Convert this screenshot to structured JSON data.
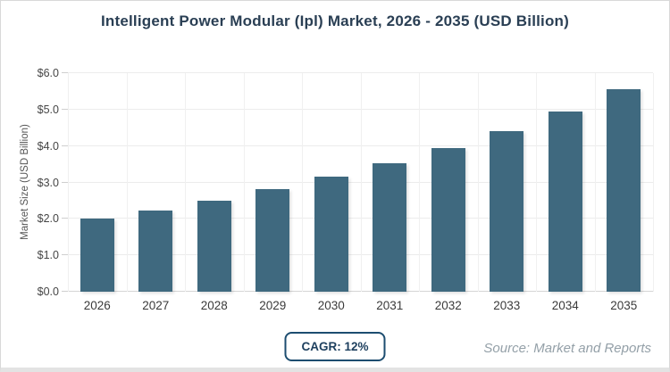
{
  "chart_data": {
    "type": "bar",
    "title": "Intelligent Power Modular (Ipl) Market, 2026 - 2035 (USD Billion)",
    "categories": [
      "2026",
      "2027",
      "2028",
      "2029",
      "2030",
      "2031",
      "2032",
      "2033",
      "2034",
      "2035"
    ],
    "values": [
      2.0,
      2.24,
      2.51,
      2.81,
      3.15,
      3.52,
      3.95,
      4.42,
      4.95,
      5.55
    ],
    "xlabel": "",
    "ylabel": "Market Size (USD Billion)",
    "ylim": [
      0,
      6
    ],
    "ytick_labels": [
      "$0.0",
      "$1.0",
      "$2.0",
      "$3.0",
      "$4.0",
      "$5.0",
      "$6.0"
    ],
    "grid": true,
    "legend": "none",
    "bar_color": "#3f697f"
  },
  "footer": {
    "cagr_label": "CAGR: 12%",
    "source": "Source: Market and Reports"
  },
  "colors": {
    "title_text": "#2a3f54",
    "bar": "#3f697f",
    "badge_border": "#1d4d70",
    "badge_text": "#1d3f5e",
    "source_text": "#94a0a8",
    "gridline": "#ececec",
    "card_border": "#d9d9d9"
  }
}
